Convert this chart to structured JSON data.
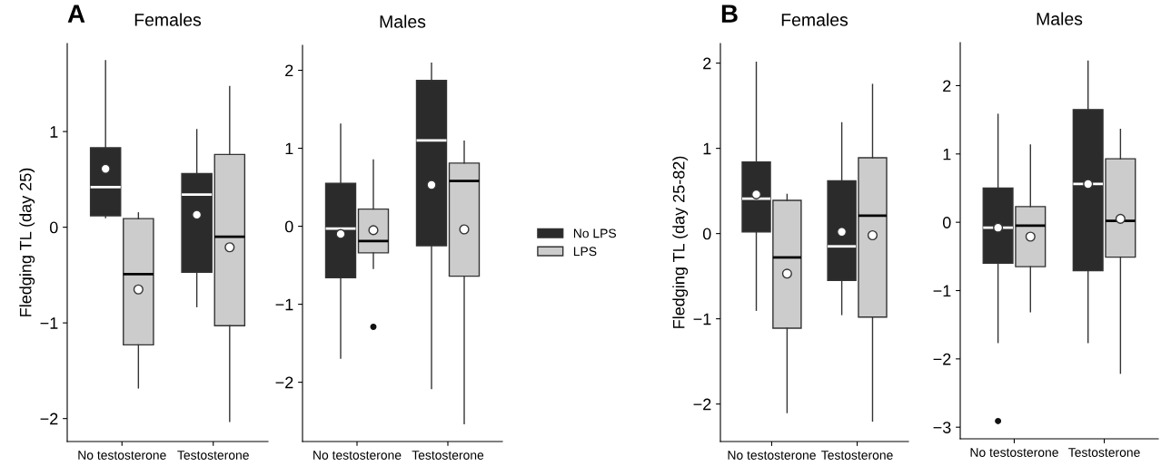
{
  "chart_data": [
    {
      "type": "box",
      "title": "Females",
      "ylabel": "Fledging TL (day 25)",
      "annotations": [
        "A"
      ],
      "categories": [
        "No testosterone",
        "Testosterone"
      ],
      "ylim": [
        -2.24,
        1.92
      ],
      "yticks": [
        -2,
        -1,
        0,
        1
      ],
      "series": [
        {
          "color": "#2b2b2b",
          "boxes": [
            {
              "low": 0.1,
              "q1": 0.12,
              "median": 0.42,
              "q3": 0.83,
              "high": 1.74,
              "mean": 0.61
            },
            {
              "low": -0.83,
              "q1": -0.47,
              "median": 0.34,
              "q3": 0.56,
              "high": 1.02,
              "mean": 0.13
            }
          ]
        },
        {
          "color": "#cccccc",
          "boxes": [
            {
              "low": -1.68,
              "q1": -1.23,
              "median": -0.49,
              "q3": 0.09,
              "high": 0.15,
              "mean": -0.65
            },
            {
              "low": -2.03,
              "q1": -1.03,
              "median": -0.1,
              "q3": 0.76,
              "high": 1.47,
              "mean": -0.21
            }
          ]
        }
      ]
    },
    {
      "type": "box",
      "title": "Males",
      "legend": "right",
      "categories": [
        "No testosterone",
        "Testosterone"
      ],
      "ylim": [
        -2.76,
        2.32
      ],
      "yticks": [
        -2,
        -1,
        0,
        1,
        2
      ],
      "series": [
        {
          "name": "No LPS",
          "color": "#2b2b2b",
          "boxes": [
            {
              "low": -1.69,
              "q1": -0.66,
              "median": -0.03,
              "q3": 0.55,
              "high": 1.31,
              "mean": -0.1
            },
            {
              "low": -2.08,
              "q1": -0.25,
              "median": 1.1,
              "q3": 1.87,
              "high": 2.09,
              "mean": 0.53
            }
          ]
        },
        {
          "name": "LPS",
          "color": "#cccccc",
          "boxes": [
            {
              "low": -0.54,
              "q1": -0.34,
              "median": -0.19,
              "q3": 0.22,
              "high": 0.85,
              "mean": -0.05,
              "outliers": [
                -1.29
              ]
            },
            {
              "low": -2.53,
              "q1": -0.64,
              "median": 0.58,
              "q3": 0.81,
              "high": 1.09,
              "mean": -0.04
            }
          ]
        }
      ]
    },
    {
      "type": "box",
      "title": "Females",
      "ylabel": "Fledging TL (day 25-82)",
      "annotations": [
        "B"
      ],
      "categories": [
        "No testosterone",
        "Testosterone"
      ],
      "ylim": [
        -2.44,
        2.23
      ],
      "yticks": [
        -2,
        -1,
        0,
        1,
        2
      ],
      "series": [
        {
          "color": "#2b2b2b",
          "boxes": [
            {
              "low": -0.9,
              "q1": 0.02,
              "median": 0.41,
              "q3": 0.84,
              "high": 2.01,
              "mean": 0.46
            },
            {
              "low": -0.95,
              "q1": -0.55,
              "median": -0.15,
              "q3": 0.62,
              "high": 1.3,
              "mean": 0.02
            }
          ]
        },
        {
          "color": "#cccccc",
          "boxes": [
            {
              "low": -2.1,
              "q1": -1.11,
              "median": -0.28,
              "q3": 0.39,
              "high": 0.46,
              "mean": -0.47
            },
            {
              "low": -2.2,
              "q1": -0.98,
              "median": 0.21,
              "q3": 0.89,
              "high": 1.75,
              "mean": -0.02
            }
          ]
        }
      ]
    },
    {
      "type": "box",
      "title": "Males",
      "categories": [
        "No testosterone",
        "Testosterone"
      ],
      "ylim": [
        -3.17,
        2.63
      ],
      "yticks": [
        -3,
        -2,
        -1,
        0,
        1,
        2
      ],
      "series": [
        {
          "color": "#2b2b2b",
          "boxes": [
            {
              "low": -1.76,
              "q1": -0.6,
              "median": -0.08,
              "q3": 0.5,
              "high": 1.58,
              "mean": -0.08,
              "outliers": [
                -2.91
              ]
            },
            {
              "low": -1.76,
              "q1": -0.71,
              "median": 0.56,
              "q3": 1.65,
              "high": 2.36,
              "mean": 0.56
            }
          ]
        },
        {
          "color": "#cccccc",
          "boxes": [
            {
              "low": -1.31,
              "q1": -0.65,
              "median": -0.05,
              "q3": 0.23,
              "high": 1.13,
              "mean": -0.21
            },
            {
              "low": -2.21,
              "q1": -0.51,
              "median": 0.02,
              "q3": 0.93,
              "high": 1.36,
              "mean": 0.05
            }
          ]
        }
      ]
    }
  ]
}
